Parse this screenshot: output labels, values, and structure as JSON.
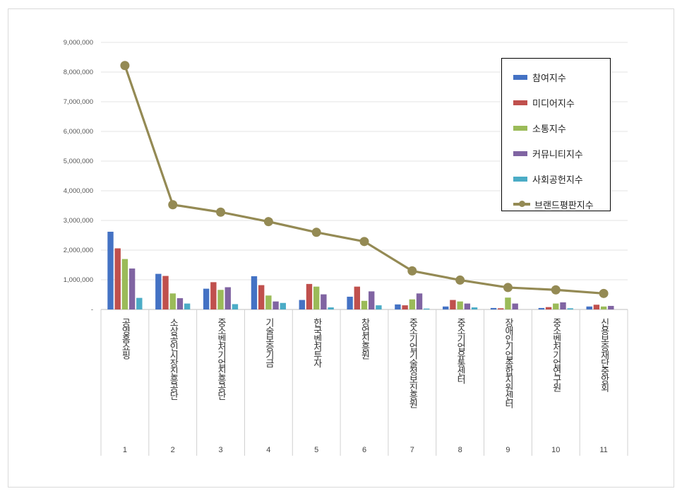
{
  "chart_data": {
    "type": "bar+line",
    "title": "",
    "xlabel": "",
    "ylabel": "",
    "ylim": [
      0,
      9000000
    ],
    "ytick_values": [
      0,
      1000000,
      2000000,
      3000000,
      4000000,
      5000000,
      6000000,
      7000000,
      8000000,
      9000000
    ],
    "ytick_labels": [
      "-",
      "1,000,000",
      "2,000,000",
      "3,000,000",
      "4,000,000",
      "5,000,000",
      "6,000,000",
      "7,000,000",
      "8,000,000",
      "9,000,000"
    ],
    "grid": true,
    "legend_position": "top-right",
    "categories": [
      "공영홈쇼핑",
      "소상공인시장진흥공단",
      "중소벤처기업진흥공단",
      "기술보증기금",
      "한국벤처투자",
      "창업진흥원",
      "중소기업기술정보진흥원",
      "중소기업유통센터",
      "장애인기업종합지원센터",
      "중소벤처기업연구원",
      "신용보증재단중앙회"
    ],
    "ranks": [
      "1",
      "2",
      "3",
      "4",
      "5",
      "6",
      "7",
      "8",
      "9",
      "10",
      "11"
    ],
    "series": [
      {
        "name": "참여지수",
        "kind": "bar",
        "color": "#4472c4",
        "values": [
          2620000,
          1200000,
          700000,
          1120000,
          320000,
          430000,
          170000,
          100000,
          50000,
          50000,
          100000
        ]
      },
      {
        "name": "미디어지수",
        "kind": "bar",
        "color": "#c0504d",
        "values": [
          2060000,
          1130000,
          920000,
          820000,
          860000,
          770000,
          140000,
          320000,
          40000,
          80000,
          160000
        ]
      },
      {
        "name": "소통지수",
        "kind": "bar",
        "color": "#9bbb59",
        "values": [
          1700000,
          540000,
          660000,
          470000,
          770000,
          290000,
          340000,
          270000,
          400000,
          200000,
          100000
        ]
      },
      {
        "name": "커뮤니티지수",
        "kind": "bar",
        "color": "#8064a2",
        "values": [
          1380000,
          380000,
          750000,
          270000,
          510000,
          610000,
          540000,
          200000,
          200000,
          240000,
          120000
        ]
      },
      {
        "name": "사회공헌지수",
        "kind": "bar",
        "color": "#4bacc6",
        "values": [
          390000,
          200000,
          180000,
          220000,
          70000,
          140000,
          30000,
          70000,
          0,
          40000,
          0
        ]
      },
      {
        "name": "브랜드평판지수",
        "kind": "line",
        "color": "#948a54",
        "values": [
          8220000,
          3530000,
          3280000,
          2960000,
          2600000,
          2290000,
          1300000,
          990000,
          740000,
          660000,
          540000
        ]
      }
    ]
  }
}
